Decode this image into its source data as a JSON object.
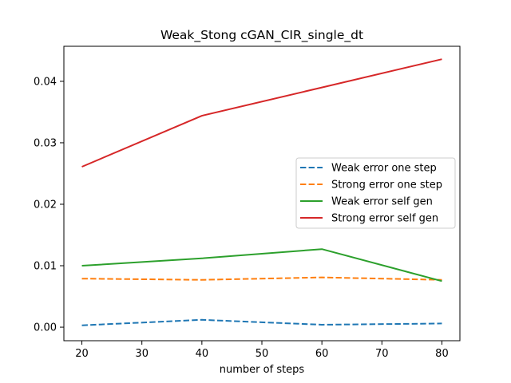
{
  "chart_data": {
    "type": "line",
    "title": "Weak_Stong cGAN_CIR_single_dt",
    "xlabel": "number of steps",
    "ylabel": "",
    "x": [
      20,
      40,
      60,
      80
    ],
    "xlim": [
      17,
      83
    ],
    "ylim": [
      -0.0022,
      0.0457
    ],
    "xticks": [
      20,
      30,
      40,
      50,
      60,
      70,
      80
    ],
    "yticks": [
      0.0,
      0.01,
      0.02,
      0.03,
      0.04
    ],
    "ytick_labels": [
      "0.00",
      "0.01",
      "0.02",
      "0.03",
      "0.04"
    ],
    "grid": false,
    "legend_position": "center-right",
    "series": [
      {
        "name": "Weak error one step",
        "values": [
          0.0003,
          0.0012,
          0.0004,
          0.0006
        ],
        "color": "#1f77b4",
        "style": "dashed"
      },
      {
        "name": "Strong error one step",
        "values": [
          0.0079,
          0.0077,
          0.0081,
          0.0077
        ],
        "color": "#ff7f0e",
        "style": "dashed"
      },
      {
        "name": "Weak error self gen",
        "values": [
          0.01,
          0.0112,
          0.0127,
          0.0075
        ],
        "color": "#2ca02c",
        "style": "solid"
      },
      {
        "name": "Strong error self gen",
        "values": [
          0.0261,
          0.0344,
          0.039,
          0.0436
        ],
        "color": "#d62728",
        "style": "solid"
      }
    ]
  }
}
